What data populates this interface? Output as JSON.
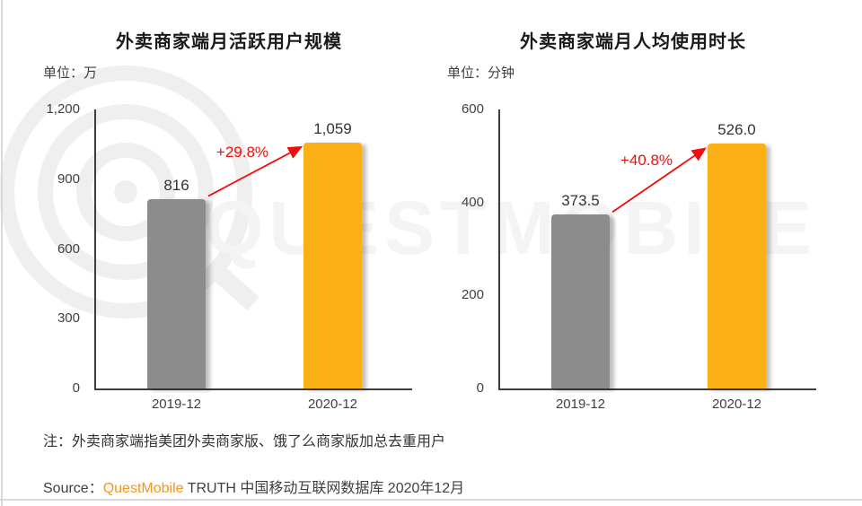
{
  "page": {
    "note": "注：外卖商家端指美团外卖商家版、饿了么商家版加总去重用户",
    "source_prefix": "Source：",
    "source_brand": "QuestMobile",
    "source_suffix": " TRUTH 中国移动互联网数据库 2020年12月",
    "watermark_text": "QUESTMOBILE"
  },
  "colors": {
    "bar_previous": "#8C8C8C",
    "bar_current": "#FBB116",
    "growth": "#F40B0B",
    "brand_orange": "#F7941D",
    "axis": "#3D3D3D",
    "watermark": "#F4F4F4"
  },
  "chart_data": [
    {
      "type": "bar",
      "title": "外卖商家端月活跃用户规模",
      "unit_label": "单位：万",
      "categories": [
        "2019-12",
        "2020-12"
      ],
      "values": [
        816,
        1059
      ],
      "value_labels": [
        "816",
        "1,059"
      ],
      "series_colors": [
        "#8C8C8C",
        "#FBB116"
      ],
      "growth_label": "+29.8%",
      "xlabel": "",
      "ylabel": "",
      "ylim": [
        0,
        1200
      ],
      "yticks": [
        0,
        300,
        600,
        900,
        1200
      ],
      "ytick_labels": [
        "0",
        "300",
        "600",
        "900",
        "1,200"
      ],
      "grid": false,
      "legend": false
    },
    {
      "type": "bar",
      "title": "外卖商家端月人均使用时长",
      "unit_label": "单位：分钟",
      "categories": [
        "2019-12",
        "2020-12"
      ],
      "values": [
        373.5,
        526.0
      ],
      "value_labels": [
        "373.5",
        "526.0"
      ],
      "series_colors": [
        "#8C8C8C",
        "#FBB116"
      ],
      "growth_label": "+40.8%",
      "xlabel": "",
      "ylabel": "",
      "ylim": [
        0,
        600
      ],
      "yticks": [
        0,
        200,
        400,
        600
      ],
      "ytick_labels": [
        "0",
        "200",
        "400",
        "600"
      ],
      "grid": false,
      "legend": false
    }
  ]
}
